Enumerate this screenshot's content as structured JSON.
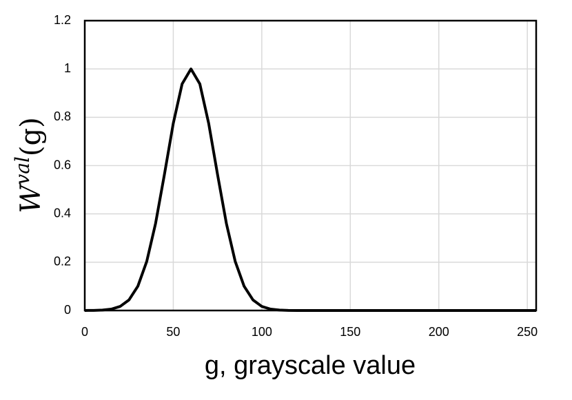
{
  "chart_data": {
    "type": "line",
    "xlabel": "g, grayscale value",
    "ylabel": "W",
    "ylabel_sup": "val",
    "ylabel_tail": "(g)",
    "x": [
      0,
      5,
      10,
      15,
      20,
      25,
      30,
      35,
      40,
      45,
      50,
      55,
      60,
      65,
      70,
      75,
      80,
      85,
      90,
      95,
      100,
      105,
      110,
      115,
      120,
      150,
      200,
      255
    ],
    "series": [
      {
        "color": "#000000",
        "values": [
          0.0001,
          0.0004,
          0.0017,
          0.0057,
          0.0169,
          0.0439,
          0.1007,
          0.203,
          0.3605,
          0.5633,
          0.7748,
          0.9382,
          1,
          0.9382,
          0.7748,
          0.5633,
          0.3605,
          0.203,
          0.1007,
          0.0439,
          0.0169,
          0.0057,
          0.0017,
          0.0004,
          0.0001,
          0,
          0,
          0
        ]
      }
    ],
    "xlim": [
      0,
      255
    ],
    "xticks": [
      0,
      50,
      100,
      150,
      200,
      250
    ],
    "ylim": [
      0,
      1.2
    ],
    "yticks": [
      0,
      0.2,
      0.4,
      0.6,
      0.8,
      1,
      1.2
    ],
    "grid": true
  }
}
